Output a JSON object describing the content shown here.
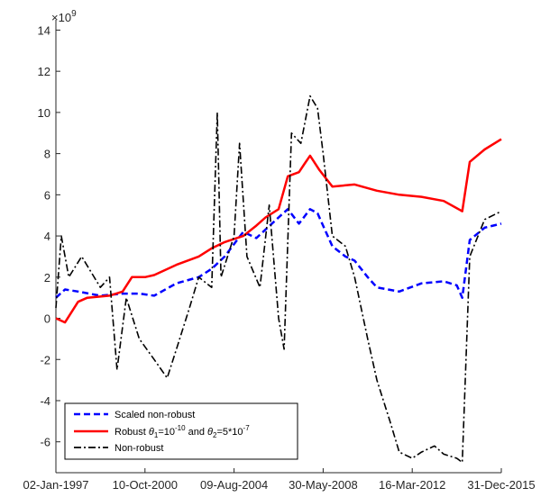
{
  "chart_data": {
    "type": "line",
    "multiplier_label": "×10",
    "multiplier_exponent": "9",
    "ylim": [
      -7.5,
      14.5
    ],
    "y_ticks": [
      14,
      12,
      10,
      8,
      6,
      4,
      2,
      0,
      -2,
      -4,
      -6
    ],
    "x_tick_labels": [
      "02-Jan-1997",
      "10-Oct-2000",
      "09-Aug-2004",
      "30-May-2008",
      "16-Mar-2012",
      "31-Dec-2015"
    ],
    "x_range": [
      "1997-01-02",
      "2016-12-31"
    ],
    "legend_position": "bottom-left",
    "legend": {
      "scaled": "Scaled non-robust",
      "robust_prefix": "Robust ",
      "theta": "θ",
      "sub1": "1",
      "eq1": "=10",
      "exp1": "-10",
      "and": " and ",
      "sub2": "2",
      "eq2": "=5*10",
      "exp2": "-7",
      "nonrobust": "Non-robust"
    },
    "series": [
      {
        "name": "Scaled non-robust",
        "color": "#0000ff",
        "style": "dashed",
        "points": [
          [
            "1997-01-02",
            1.0
          ],
          [
            "1997-06-01",
            1.4
          ],
          [
            "1998-01-01",
            1.3
          ],
          [
            "1999-01-01",
            1.1
          ],
          [
            "2000-01-01",
            1.2
          ],
          [
            "2000-10-01",
            1.2
          ],
          [
            "2001-06-01",
            1.1
          ],
          [
            "2002-06-01",
            1.7
          ],
          [
            "2003-06-01",
            2.0
          ],
          [
            "2004-01-01",
            2.4
          ],
          [
            "2004-08-01",
            3.0
          ],
          [
            "2005-06-01",
            4.2
          ],
          [
            "2006-01-01",
            3.9
          ],
          [
            "2007-01-01",
            4.9
          ],
          [
            "2007-06-01",
            5.3
          ],
          [
            "2007-12-01",
            4.6
          ],
          [
            "2008-06-01",
            5.3
          ],
          [
            "2008-10-01",
            5.1
          ],
          [
            "2009-06-01",
            3.5
          ],
          [
            "2010-01-01",
            3.0
          ],
          [
            "2010-06-01",
            2.8
          ],
          [
            "2011-01-01",
            2.0
          ],
          [
            "2011-06-01",
            1.5
          ],
          [
            "2012-06-01",
            1.3
          ],
          [
            "2013-06-01",
            1.7
          ],
          [
            "2014-06-01",
            1.8
          ],
          [
            "2015-01-01",
            1.6
          ],
          [
            "2015-04-01",
            1.0
          ],
          [
            "2015-08-01",
            3.8
          ],
          [
            "2016-04-01",
            4.4
          ],
          [
            "2016-12-31",
            4.6
          ]
        ]
      },
      {
        "name": "Robust θ₁=10⁻¹⁰ and θ₂=5*10⁻⁷",
        "color": "#ff0000",
        "style": "solid",
        "points": [
          [
            "1997-01-02",
            0.0
          ],
          [
            "1997-06-01",
            -0.2
          ],
          [
            "1998-01-01",
            0.8
          ],
          [
            "1998-06-01",
            1.0
          ],
          [
            "1999-06-01",
            1.1
          ],
          [
            "2000-01-01",
            1.3
          ],
          [
            "2000-06-01",
            2.0
          ],
          [
            "2001-01-01",
            2.0
          ],
          [
            "2001-06-01",
            2.1
          ],
          [
            "2002-06-01",
            2.6
          ],
          [
            "2003-06-01",
            3.0
          ],
          [
            "2004-01-01",
            3.4
          ],
          [
            "2004-08-01",
            3.7
          ],
          [
            "2005-06-01",
            4.0
          ],
          [
            "2006-01-01",
            4.5
          ],
          [
            "2006-06-01",
            4.9
          ],
          [
            "2007-01-01",
            5.3
          ],
          [
            "2007-06-01",
            6.9
          ],
          [
            "2007-12-01",
            7.1
          ],
          [
            "2008-03-01",
            7.5
          ],
          [
            "2008-06-01",
            7.9
          ],
          [
            "2008-11-01",
            7.2
          ],
          [
            "2009-06-01",
            6.4
          ],
          [
            "2010-06-01",
            6.5
          ],
          [
            "2011-06-01",
            6.2
          ],
          [
            "2012-06-01",
            6.0
          ],
          [
            "2013-06-01",
            5.9
          ],
          [
            "2014-06-01",
            5.7
          ],
          [
            "2015-04-01",
            5.2
          ],
          [
            "2015-08-01",
            7.6
          ],
          [
            "2016-04-01",
            8.2
          ],
          [
            "2016-12-31",
            8.7
          ]
        ]
      },
      {
        "name": "Non-robust",
        "color": "#000000",
        "style": "dashdot",
        "points": [
          [
            "1997-01-02",
            0.5
          ],
          [
            "1997-04-01",
            4.0
          ],
          [
            "1997-08-01",
            2.0
          ],
          [
            "1998-03-01",
            3.0
          ],
          [
            "1999-01-01",
            1.5
          ],
          [
            "1999-06-01",
            2.0
          ],
          [
            "1999-10-01",
            -2.5
          ],
          [
            "2000-03-01",
            1.0
          ],
          [
            "2000-10-01",
            -1.0
          ],
          [
            "2001-06-01",
            -2.0
          ],
          [
            "2002-01-01",
            -2.9
          ],
          [
            "2002-06-01",
            -1.5
          ],
          [
            "2003-01-01",
            0.5
          ],
          [
            "2003-06-01",
            2.0
          ],
          [
            "2004-01-01",
            1.5
          ],
          [
            "2004-04-01",
            10.0
          ],
          [
            "2004-06-01",
            2.0
          ],
          [
            "2005-01-01",
            4.0
          ],
          [
            "2005-04-01",
            8.5
          ],
          [
            "2005-08-01",
            3.0
          ],
          [
            "2006-03-01",
            1.5
          ],
          [
            "2006-08-01",
            5.5
          ],
          [
            "2007-01-01",
            0.0
          ],
          [
            "2007-04-01",
            -1.5
          ],
          [
            "2007-08-01",
            9.0
          ],
          [
            "2008-01-01",
            8.5
          ],
          [
            "2008-06-01",
            10.8
          ],
          [
            "2008-10-01",
            10.2
          ],
          [
            "2009-01-01",
            8.0
          ],
          [
            "2009-06-01",
            4.0
          ],
          [
            "2010-01-01",
            3.5
          ],
          [
            "2010-06-01",
            2.0
          ],
          [
            "2011-01-01",
            -1.0
          ],
          [
            "2011-06-01",
            -3.0
          ],
          [
            "2012-01-01",
            -5.0
          ],
          [
            "2012-06-01",
            -6.5
          ],
          [
            "2013-01-01",
            -6.8
          ],
          [
            "2013-06-01",
            -6.5
          ],
          [
            "2014-01-01",
            -6.2
          ],
          [
            "2014-06-01",
            -6.6
          ],
          [
            "2015-01-01",
            -6.8
          ],
          [
            "2015-04-01",
            -7.0
          ],
          [
            "2015-08-01",
            3.0
          ],
          [
            "2016-04-01",
            4.8
          ],
          [
            "2016-12-31",
            5.2
          ]
        ]
      }
    ]
  }
}
